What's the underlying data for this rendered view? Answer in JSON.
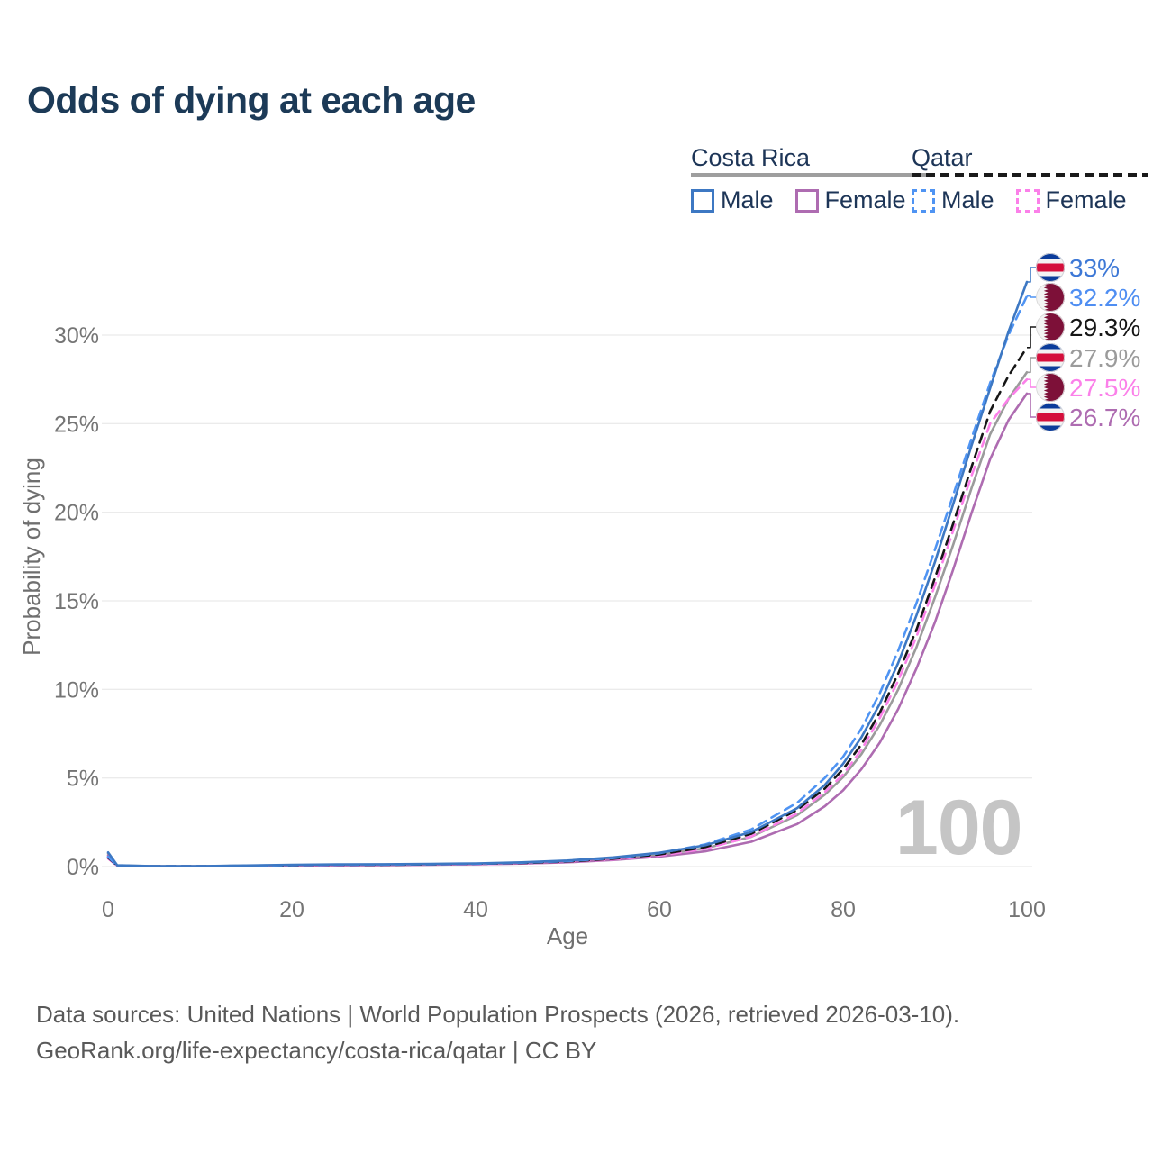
{
  "title": "Odds of dying at each age",
  "legend": {
    "groups": [
      {
        "label": "Costa Rica",
        "line_style": "solid",
        "line_color": "#9e9e9e",
        "items": [
          {
            "label": "Male",
            "color": "#3d78c3",
            "dash": false
          },
          {
            "label": "Female",
            "color": "#ae6cb1",
            "dash": false
          }
        ]
      },
      {
        "label": "Qatar",
        "line_style": "dashed",
        "line_color": "#1a1a1a",
        "items": [
          {
            "label": "Male",
            "color": "#4f94f3",
            "dash": true
          },
          {
            "label": "Female",
            "color": "#fb80e9",
            "dash": true
          }
        ]
      }
    ]
  },
  "watermark": "100",
  "footer": {
    "line1": "Data sources: United Nations | World Population Prospects (2026, retrieved 2026-03-10).",
    "line2": "GeoRank.org/life-expectancy/costa-rica/qatar | CC BY"
  },
  "chart_data": {
    "type": "line",
    "title": "Odds of dying at each age",
    "xlabel": "Age",
    "ylabel": "Probability of dying",
    "xlim": [
      0,
      100
    ],
    "ylim": [
      0,
      33.5
    ],
    "x_ticks": [
      0,
      20,
      40,
      60,
      80,
      100
    ],
    "y_ticks": [
      "0%",
      "5%",
      "10%",
      "15%",
      "20%",
      "25%",
      "30%"
    ],
    "grid": "horizontal-only",
    "legend_position": "top-right",
    "x": [
      0,
      1,
      5,
      10,
      15,
      20,
      25,
      30,
      35,
      40,
      45,
      50,
      55,
      60,
      65,
      70,
      75,
      78,
      80,
      82,
      84,
      86,
      88,
      90,
      92,
      94,
      96,
      98,
      100
    ],
    "series": [
      {
        "id": "costa-rica-male",
        "name": "Costa Rica — Male",
        "country": "Costa Rica",
        "sex": "Male",
        "style": "solid",
        "color": "#3d78c3",
        "label_color": "#3d78d6",
        "flag": "cr",
        "end_label": "33%",
        "end_value": 33.0,
        "values": [
          0.8,
          0.07,
          0.02,
          0.02,
          0.06,
          0.1,
          0.12,
          0.13,
          0.15,
          0.18,
          0.24,
          0.34,
          0.52,
          0.78,
          1.2,
          1.95,
          3.3,
          4.6,
          5.8,
          7.3,
          9.2,
          11.5,
          14.2,
          17.2,
          20.5,
          23.8,
          27.0,
          30.2,
          33.0
        ]
      },
      {
        "id": "qatar-male",
        "name": "Qatar — Male",
        "country": "Qatar",
        "sex": "Male",
        "style": "dashed",
        "color": "#4f94f3",
        "label_color": "#4f8ef2",
        "flag": "qa",
        "end_label": "32.2%",
        "end_value": 32.2,
        "values": [
          0.55,
          0.05,
          0.02,
          0.02,
          0.05,
          0.08,
          0.1,
          0.11,
          0.13,
          0.16,
          0.22,
          0.31,
          0.48,
          0.75,
          1.25,
          2.1,
          3.6,
          5.0,
          6.2,
          7.8,
          9.8,
          12.2,
          14.9,
          17.9,
          21.0,
          24.2,
          27.3,
          30.0,
          32.2
        ]
      },
      {
        "id": "qatar-both",
        "name": "Qatar — Both sexes",
        "country": "Qatar",
        "sex": "Both",
        "style": "dashed",
        "color": "#161616",
        "label_color": "#161616",
        "flag": "qa",
        "end_label": "29.3%",
        "end_value": 29.3,
        "values": [
          0.5,
          0.05,
          0.02,
          0.02,
          0.04,
          0.07,
          0.09,
          0.1,
          0.12,
          0.15,
          0.2,
          0.28,
          0.44,
          0.68,
          1.1,
          1.85,
          3.2,
          4.4,
          5.5,
          6.9,
          8.7,
          10.9,
          13.4,
          16.3,
          19.4,
          22.6,
          25.7,
          27.7,
          29.3
        ]
      },
      {
        "id": "costa-rica-both",
        "name": "Costa Rica — Both sexes",
        "country": "Costa Rica",
        "sex": "Both",
        "style": "solid",
        "color": "#9b9b9b",
        "label_color": "#9b9b9b",
        "flag": "cr",
        "end_label": "27.9%",
        "end_value": 27.9,
        "values": [
          0.72,
          0.06,
          0.02,
          0.02,
          0.05,
          0.08,
          0.1,
          0.11,
          0.13,
          0.16,
          0.21,
          0.29,
          0.45,
          0.67,
          1.03,
          1.68,
          2.9,
          4.05,
          5.05,
          6.35,
          8.0,
          10.0,
          12.4,
          15.2,
          18.2,
          21.4,
          24.4,
          26.4,
          27.9
        ]
      },
      {
        "id": "qatar-female",
        "name": "Qatar — Female",
        "country": "Qatar",
        "sex": "Female",
        "style": "dashed",
        "color": "#fb80e9",
        "label_color": "#fb80e9",
        "flag": "qa",
        "end_label": "27.5%",
        "end_value": 27.5,
        "values": [
          0.45,
          0.04,
          0.015,
          0.015,
          0.035,
          0.06,
          0.07,
          0.09,
          0.11,
          0.13,
          0.18,
          0.26,
          0.4,
          0.62,
          1.0,
          1.7,
          3.0,
          4.2,
          5.2,
          6.6,
          8.4,
          10.5,
          13.0,
          15.9,
          19.0,
          22.1,
          25.0,
          26.4,
          27.5
        ]
      },
      {
        "id": "costa-rica-female",
        "name": "Costa Rica — Female",
        "country": "Costa Rica",
        "sex": "Female",
        "style": "solid",
        "color": "#ae6cb1",
        "label_color": "#ae6cb1",
        "flag": "cr",
        "end_label": "26.7%",
        "end_value": 26.7,
        "values": [
          0.62,
          0.05,
          0.015,
          0.015,
          0.03,
          0.05,
          0.07,
          0.08,
          0.1,
          0.13,
          0.17,
          0.24,
          0.37,
          0.56,
          0.86,
          1.4,
          2.4,
          3.4,
          4.3,
          5.5,
          7.0,
          8.9,
          11.2,
          13.8,
          16.8,
          20.0,
          23.0,
          25.2,
          26.7
        ]
      }
    ]
  }
}
